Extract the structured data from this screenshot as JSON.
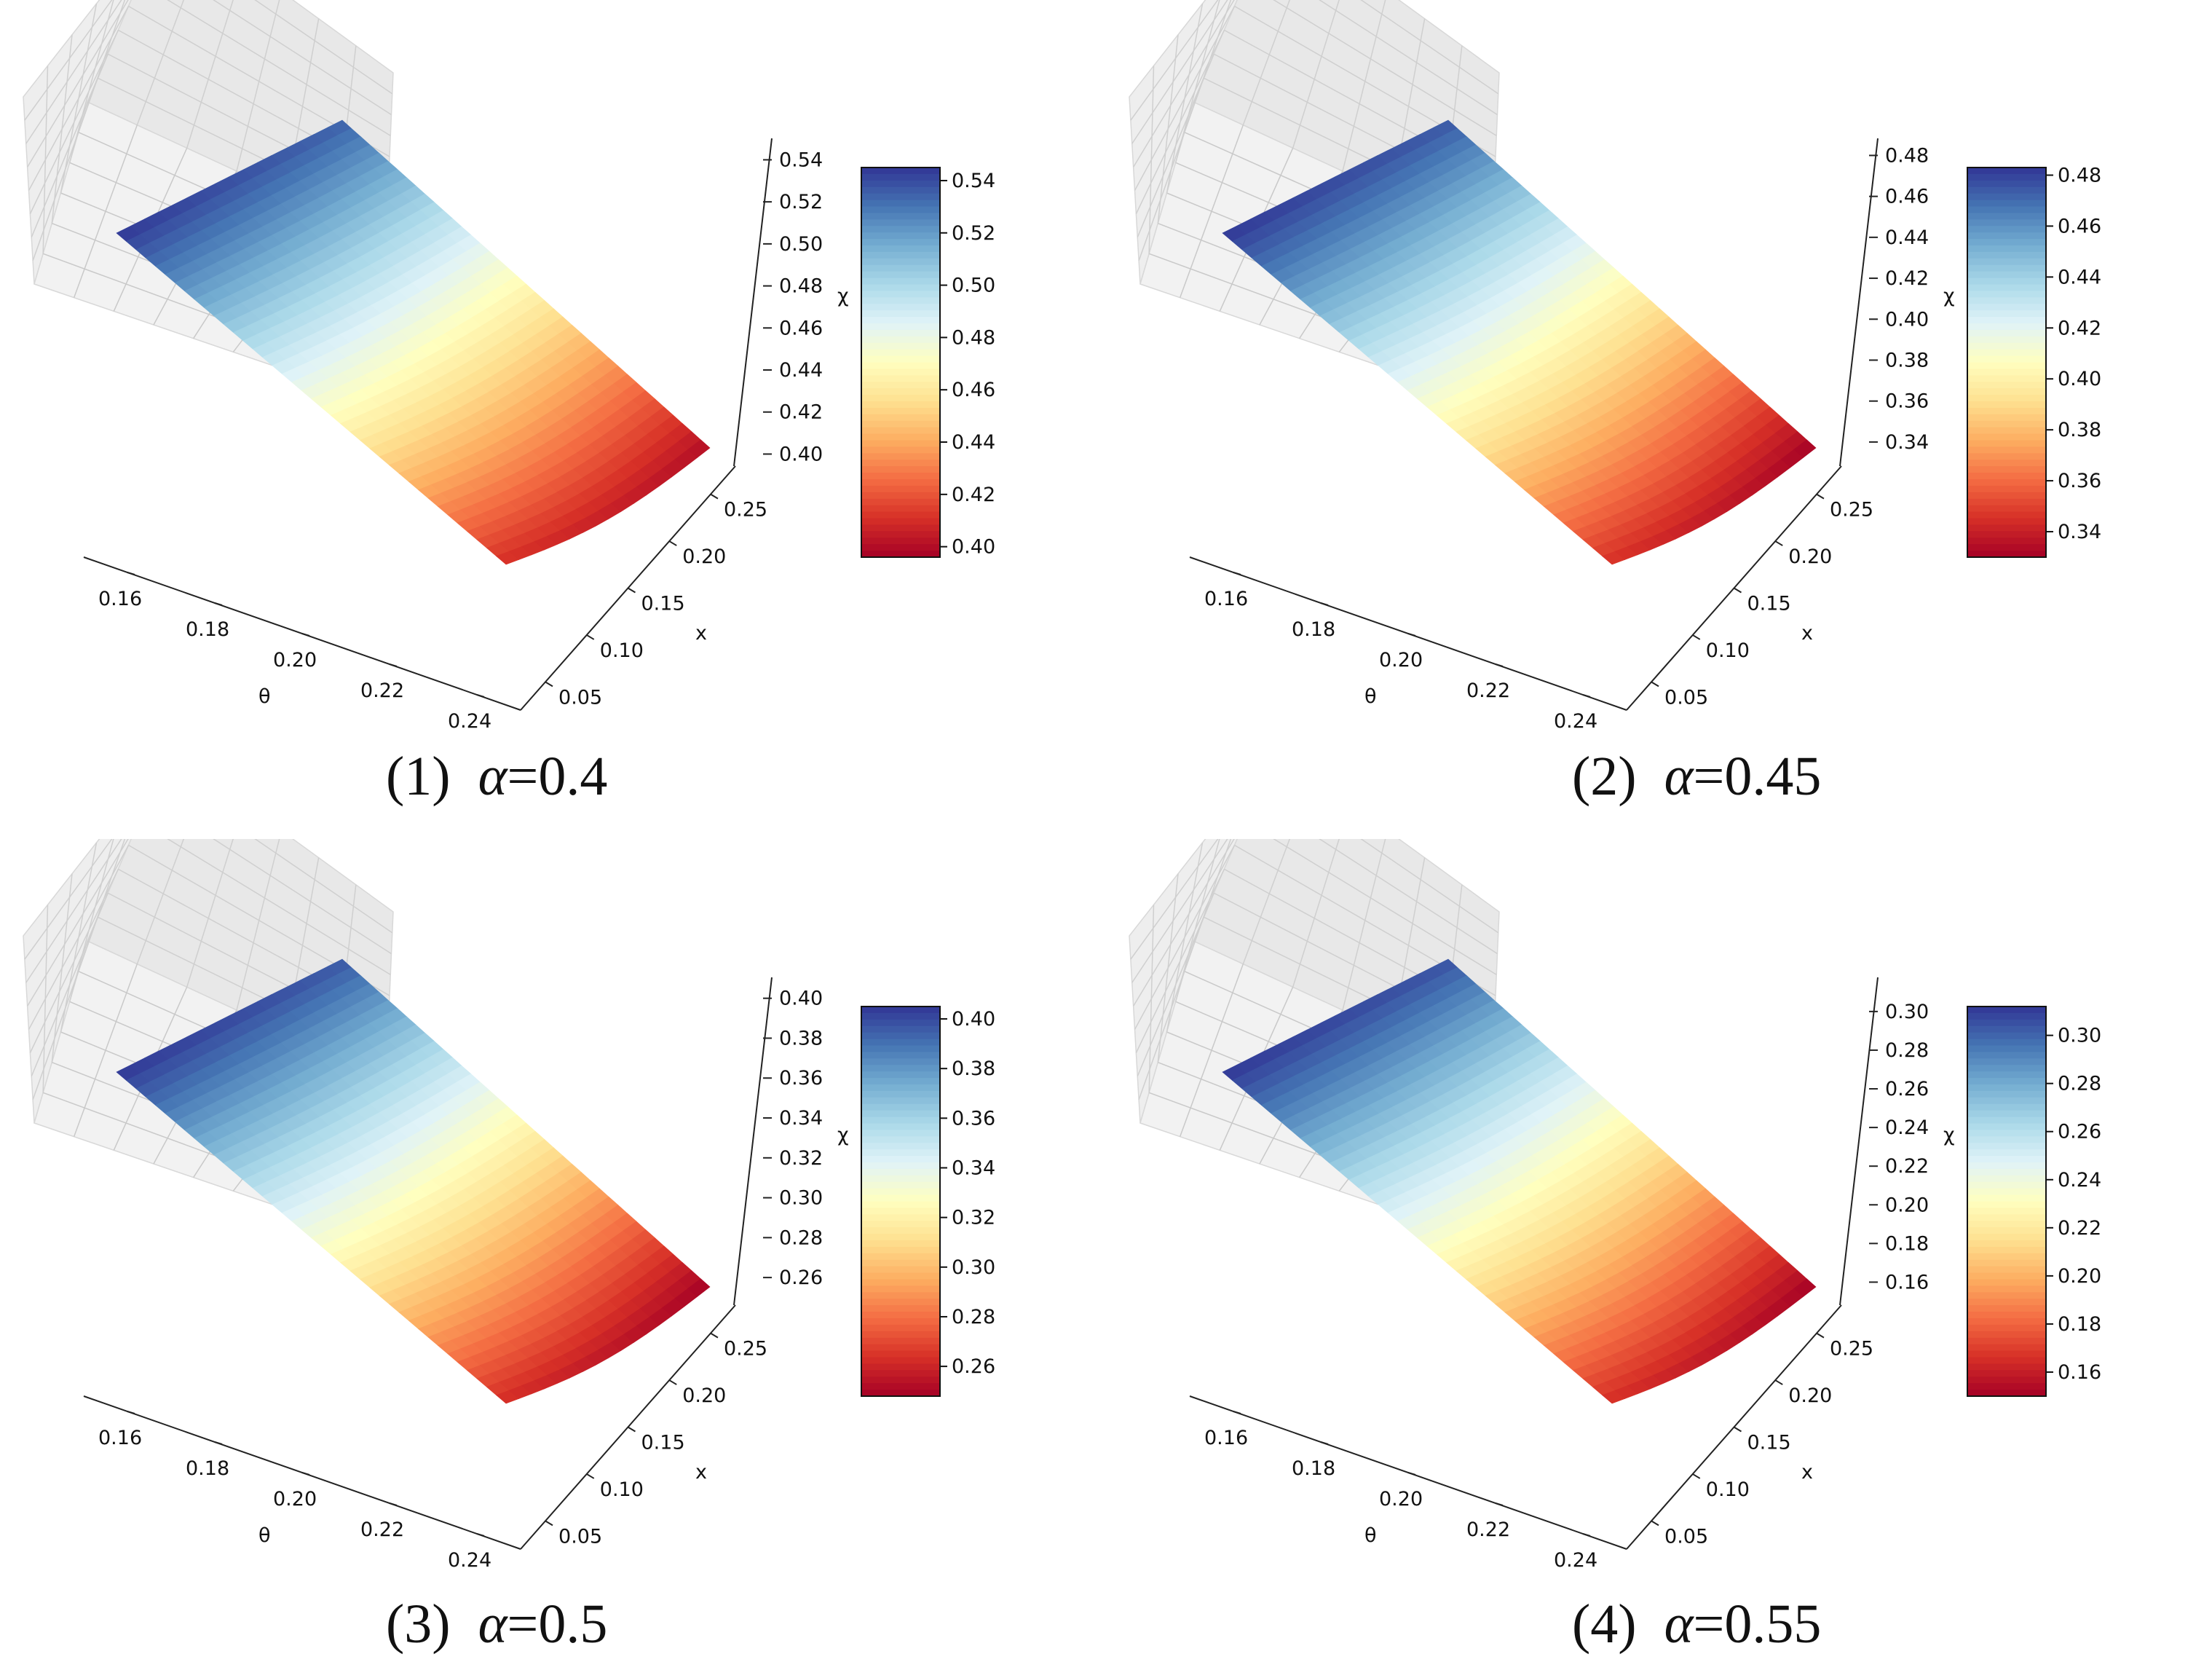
{
  "chart_data": [
    {
      "type": "surface3d",
      "panel_label": "(1)",
      "param_symbol": "α",
      "equals": "=",
      "param_value": "0.4",
      "theta_label": "θ",
      "x_label": "x",
      "z_label": "χ",
      "theta_ticks": [
        "0.16",
        "0.18",
        "0.20",
        "0.22",
        "0.24"
      ],
      "x_ticks": [
        "0.05",
        "0.10",
        "0.15",
        "0.20",
        "0.25"
      ],
      "z_ticks": [
        "0.40",
        "0.42",
        "0.44",
        "0.46",
        "0.48",
        "0.50",
        "0.52",
        "0.54"
      ],
      "colorbar_ticks": [
        "0.40",
        "0.42",
        "0.44",
        "0.46",
        "0.48",
        "0.50",
        "0.52",
        "0.54"
      ],
      "theta_range": [
        0.15,
        0.25
      ],
      "x_range": [
        0.02,
        0.28
      ],
      "z_range": [
        0.396,
        0.545
      ],
      "corner_values": {
        "theta_min_x_min": 0.545,
        "theta_min_x_max": 0.535,
        "theta_max_x_min": 0.41,
        "theta_max_x_max": 0.4
      },
      "colormap": "RdYlBu"
    },
    {
      "type": "surface3d",
      "panel_label": "(2)",
      "param_symbol": "α",
      "equals": "=",
      "param_value": "0.45",
      "theta_label": "θ",
      "x_label": "x",
      "z_label": "χ",
      "theta_ticks": [
        "0.16",
        "0.18",
        "0.20",
        "0.22",
        "0.24"
      ],
      "x_ticks": [
        "0.05",
        "0.10",
        "0.15",
        "0.20",
        "0.25"
      ],
      "z_ticks": [
        "0.34",
        "0.36",
        "0.38",
        "0.40",
        "0.42",
        "0.44",
        "0.46",
        "0.48"
      ],
      "colorbar_ticks": [
        "0.34",
        "0.36",
        "0.38",
        "0.40",
        "0.42",
        "0.44",
        "0.46",
        "0.48"
      ],
      "theta_range": [
        0.15,
        0.25
      ],
      "x_range": [
        0.02,
        0.28
      ],
      "z_range": [
        0.33,
        0.483
      ],
      "corner_values": {
        "theta_min_x_min": 0.483,
        "theta_min_x_max": 0.475,
        "theta_max_x_min": 0.345,
        "theta_max_x_max": 0.33
      },
      "colormap": "RdYlBu"
    },
    {
      "type": "surface3d",
      "panel_label": "(3)",
      "param_symbol": "α",
      "equals": "=",
      "param_value": "0.5",
      "theta_label": "θ",
      "x_label": "x",
      "z_label": "χ",
      "theta_ticks": [
        "0.16",
        "0.18",
        "0.20",
        "0.22",
        "0.24"
      ],
      "x_ticks": [
        "0.05",
        "0.10",
        "0.15",
        "0.20",
        "0.25"
      ],
      "z_ticks": [
        "0.26",
        "0.28",
        "0.30",
        "0.32",
        "0.34",
        "0.36",
        "0.38",
        "0.40"
      ],
      "colorbar_ticks": [
        "0.26",
        "0.28",
        "0.30",
        "0.32",
        "0.34",
        "0.36",
        "0.38",
        "0.40"
      ],
      "theta_range": [
        0.15,
        0.25
      ],
      "x_range": [
        0.02,
        0.28
      ],
      "z_range": [
        0.248,
        0.405
      ],
      "corner_values": {
        "theta_min_x_min": 0.405,
        "theta_min_x_max": 0.397,
        "theta_max_x_min": 0.262,
        "theta_max_x_max": 0.248
      },
      "colormap": "RdYlBu"
    },
    {
      "type": "surface3d",
      "panel_label": "(4)",
      "param_symbol": "α",
      "equals": "=",
      "param_value": "0.55",
      "theta_label": "θ",
      "x_label": "x",
      "z_label": "χ",
      "theta_ticks": [
        "0.16",
        "0.18",
        "0.20",
        "0.22",
        "0.24"
      ],
      "x_ticks": [
        "0.05",
        "0.10",
        "0.15",
        "0.20",
        "0.25"
      ],
      "z_ticks": [
        "0.16",
        "0.18",
        "0.20",
        "0.22",
        "0.24",
        "0.26",
        "0.28",
        "0.30"
      ],
      "colorbar_ticks": [
        "0.16",
        "0.18",
        "0.20",
        "0.22",
        "0.24",
        "0.26",
        "0.28",
        "0.30"
      ],
      "theta_range": [
        0.15,
        0.25
      ],
      "x_range": [
        0.02,
        0.28
      ],
      "z_range": [
        0.15,
        0.312
      ],
      "corner_values": {
        "theta_min_x_min": 0.312,
        "theta_min_x_max": 0.305,
        "theta_max_x_min": 0.165,
        "theta_max_x_max": 0.15
      },
      "colormap": "RdYlBu"
    }
  ]
}
